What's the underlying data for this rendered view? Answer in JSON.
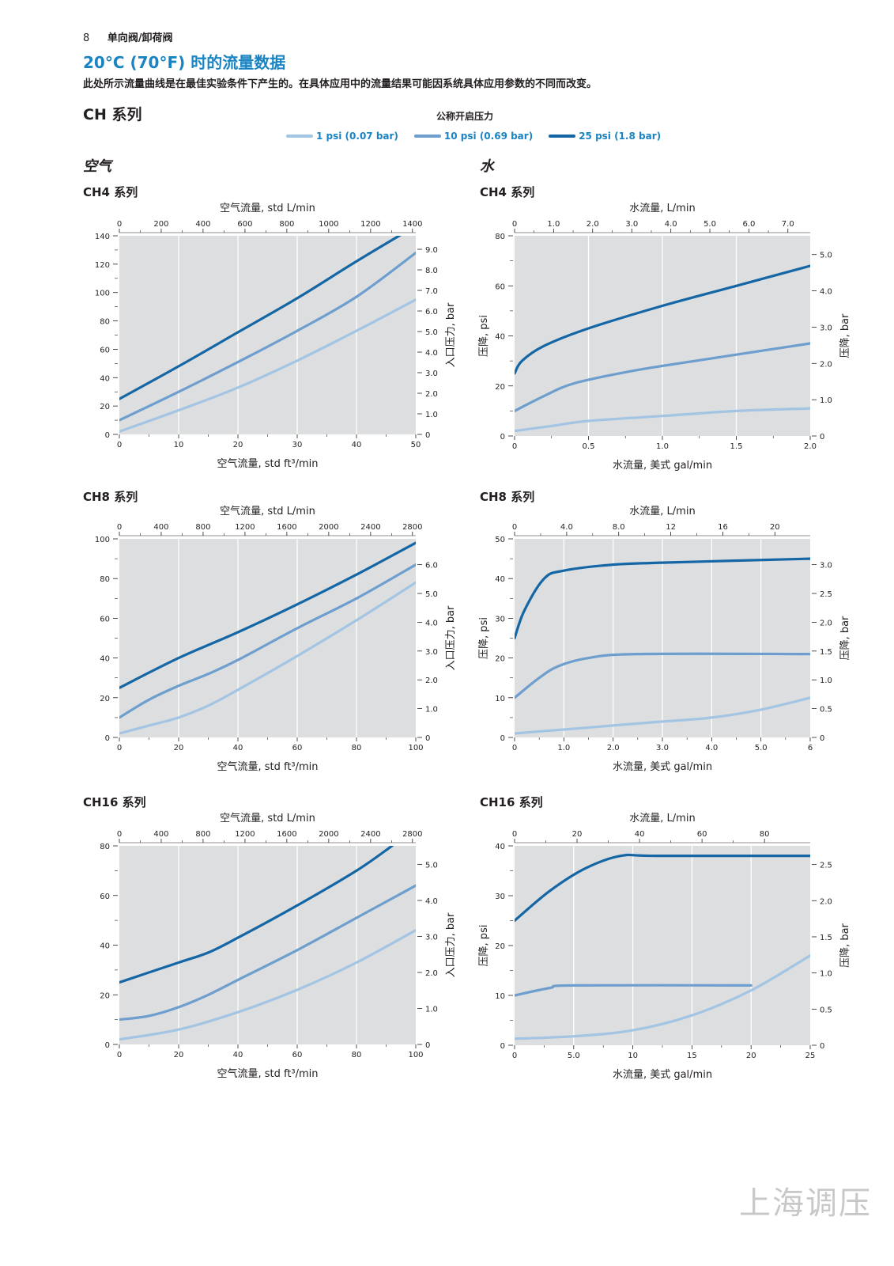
{
  "header": {
    "page_number": "8",
    "section": "单向阀/卸荷阀"
  },
  "title": "20°C (70°F) 时的流量数据",
  "intro": "此处所示流量曲线是在最佳实验条件下产生的。在具体应用中的流量结果可能因系统具体应用参数的不同而改变。",
  "series_title": "CH 系列",
  "legend": {
    "title": "公称开启压力",
    "items": [
      {
        "label": "1 psi (0.07 bar)",
        "color": "#a3c5e3"
      },
      {
        "label": "10 psi (0.69 bar)",
        "color": "#6d9ece"
      },
      {
        "label": "25 psi (1.8 bar)",
        "color": "#1466a4"
      }
    ]
  },
  "columns": {
    "air": "空气",
    "water": "水"
  },
  "watermark": "上海调压",
  "chart_data": [
    {
      "id": "air4",
      "type": "line",
      "title": "CH4 系列",
      "xlabel": "空气流量, std ft³/min",
      "x_top_label": "空气流量, std L/min",
      "ylabel": "入口压力, bar",
      "xlim": [
        0,
        50
      ],
      "ylim": [
        0,
        140
      ],
      "x_ticks": [
        "0",
        "10",
        "20",
        "30",
        "40",
        "50"
      ],
      "x_tick_values": [
        0,
        10,
        20,
        30,
        40,
        50
      ],
      "y_ticks": [
        "0",
        "20",
        "40",
        "60",
        "80",
        "100",
        "120",
        "140"
      ],
      "y_tick_values": [
        0,
        20,
        40,
        60,
        80,
        100,
        120,
        140
      ],
      "top_ticks": [
        "0",
        "200",
        "400",
        "600",
        "800",
        "1000",
        "1200",
        "1400"
      ],
      "top_tick_values": [
        0,
        7.06,
        14.12,
        21.19,
        28.25,
        35.31,
        42.38,
        49.44
      ],
      "right_ticks": [
        "0",
        "1.0",
        "2.0",
        "3.0",
        "4.0",
        "5.0",
        "6.0",
        "7.0",
        "8.0",
        "9.0"
      ],
      "right_tick_values": [
        0,
        14.5,
        29,
        43.5,
        58,
        72.5,
        87,
        101.5,
        116,
        130.5
      ],
      "series": [
        {
          "name": "1 psi (0.07 bar)",
          "x": [
            0,
            10,
            20,
            30,
            40,
            50
          ],
          "y": [
            2,
            17,
            33,
            52,
            73,
            95
          ]
        },
        {
          "name": "10 psi (0.69 bar)",
          "x": [
            0,
            10,
            20,
            30,
            40,
            50
          ],
          "y": [
            10,
            30,
            51,
            73,
            97,
            128
          ]
        },
        {
          "name": "25 psi (1.8 bar)",
          "x": [
            0,
            10,
            20,
            30,
            40,
            48
          ],
          "y": [
            25,
            48,
            72,
            96,
            122,
            142
          ]
        }
      ]
    },
    {
      "id": "water4",
      "type": "line",
      "title": "CH4 系列",
      "xlabel": "水流量, 美式 gal/min",
      "x_top_label": "水流量, L/min",
      "ylabel": "压降, psi",
      "ylabel_right": "压降, bar",
      "xlim": [
        0,
        2.0
      ],
      "ylim": [
        0,
        80
      ],
      "x_ticks": [
        "0",
        "0.5",
        "1.0",
        "1.5",
        "2.0"
      ],
      "x_tick_values": [
        0,
        0.5,
        1.0,
        1.5,
        2.0
      ],
      "y_ticks": [
        "0",
        "20",
        "40",
        "60",
        "80"
      ],
      "y_tick_values": [
        0,
        20,
        40,
        60,
        80
      ],
      "top_ticks": [
        "0",
        "1.0",
        "2.0",
        "3.0",
        "4.0",
        "5.0",
        "6.0",
        "7.0"
      ],
      "top_tick_values": [
        0,
        0.264,
        0.528,
        0.793,
        1.057,
        1.321,
        1.585,
        1.849
      ],
      "right_ticks": [
        "0",
        "1.0",
        "2.0",
        "3.0",
        "4.0",
        "5.0"
      ],
      "right_tick_values": [
        0,
        14.5,
        29,
        43.5,
        58,
        72.5
      ],
      "series": [
        {
          "name": "1 psi (0.07 bar)",
          "x": [
            0,
            0.25,
            0.5,
            1.0,
            1.5,
            2.0
          ],
          "y": [
            2,
            4,
            6,
            8,
            10,
            11
          ]
        },
        {
          "name": "10 psi (0.69 bar)",
          "x": [
            0,
            0.2,
            0.4,
            0.75,
            1.0,
            1.5,
            2.0
          ],
          "y": [
            10,
            16,
            21,
            25.5,
            28,
            32.5,
            37
          ]
        },
        {
          "name": "25 psi (1.8 bar)",
          "x": [
            0,
            0.05,
            0.2,
            0.5,
            1.0,
            1.5,
            2.0
          ],
          "y": [
            25,
            30,
            36,
            43,
            52,
            60,
            68
          ]
        }
      ]
    },
    {
      "id": "air8",
      "type": "line",
      "title": "CH8 系列",
      "xlabel": "空气流量, std ft³/min",
      "x_top_label": "空气流量, std L/min",
      "ylabel": "入口压力, bar",
      "xlim": [
        0,
        100
      ],
      "ylim": [
        0,
        100
      ],
      "x_ticks": [
        "0",
        "20",
        "40",
        "60",
        "80",
        "100"
      ],
      "x_tick_values": [
        0,
        20,
        40,
        60,
        80,
        100
      ],
      "y_ticks": [
        "0",
        "20",
        "40",
        "60",
        "80",
        "100"
      ],
      "y_tick_values": [
        0,
        20,
        40,
        60,
        80,
        100
      ],
      "top_ticks": [
        "0",
        "400",
        "800",
        "1200",
        "1600",
        "2000",
        "2400",
        "2800"
      ],
      "top_tick_values": [
        0,
        14.12,
        28.25,
        42.38,
        56.5,
        70.63,
        84.76,
        98.88
      ],
      "right_ticks": [
        "0",
        "1.0",
        "2.0",
        "3.0",
        "4.0",
        "5.0",
        "6.0"
      ],
      "right_tick_values": [
        0,
        14.5,
        29,
        43.5,
        58,
        72.5,
        87
      ],
      "series": [
        {
          "name": "1 psi (0.07 bar)",
          "x": [
            0,
            10,
            20,
            30,
            40,
            60,
            80,
            100
          ],
          "y": [
            2,
            6,
            10,
            16,
            24,
            41,
            59,
            78
          ]
        },
        {
          "name": "10 psi (0.69 bar)",
          "x": [
            0,
            10,
            20,
            30,
            40,
            60,
            80,
            100
          ],
          "y": [
            10,
            19,
            26,
            32,
            39,
            55,
            70,
            87
          ]
        },
        {
          "name": "25 psi (1.8 bar)",
          "x": [
            0,
            20,
            40,
            60,
            80,
            100
          ],
          "y": [
            25,
            40,
            53,
            67,
            82,
            98
          ]
        }
      ]
    },
    {
      "id": "water8",
      "type": "line",
      "title": "CH8 系列",
      "xlabel": "水流量, 美式 gal/min",
      "x_top_label": "水流量, L/min",
      "ylabel": "压降, psi",
      "ylabel_right": "压降, bar",
      "xlim": [
        0,
        6
      ],
      "ylim": [
        0,
        50
      ],
      "x_ticks": [
        "0",
        "1.0",
        "2.0",
        "3.0",
        "4.0",
        "5.0",
        "6"
      ],
      "x_tick_values": [
        0,
        1,
        2,
        3,
        4,
        5,
        6
      ],
      "y_ticks": [
        "0",
        "10",
        "20",
        "30",
        "40",
        "50"
      ],
      "y_tick_values": [
        0,
        10,
        20,
        30,
        40,
        50
      ],
      "top_ticks": [
        "0",
        "4.0",
        "8.0",
        "12",
        "16",
        "20"
      ],
      "top_tick_values": [
        0,
        1.057,
        2.113,
        3.17,
        4.227,
        5.283
      ],
      "right_ticks": [
        "0",
        "0.5",
        "1.0",
        "1.5",
        "2.0",
        "2.5",
        "3.0"
      ],
      "right_tick_values": [
        0,
        7.25,
        14.5,
        21.75,
        29,
        36.25,
        43.5
      ],
      "series": [
        {
          "name": "1 psi (0.07 bar)",
          "x": [
            0,
            1,
            2,
            3,
            4,
            5,
            6
          ],
          "y": [
            1,
            2,
            3,
            4,
            5,
            7,
            10
          ]
        },
        {
          "name": "10 psi (0.69 bar)",
          "x": [
            0,
            0.5,
            0.9,
            1.5,
            2.5,
            6
          ],
          "y": [
            10,
            15,
            18,
            20,
            21,
            21
          ]
        },
        {
          "name": "25 psi (1.8 bar)",
          "x": [
            0,
            0.2,
            0.6,
            1.0,
            2.0,
            3.0,
            6.0
          ],
          "y": [
            25,
            32,
            40,
            42,
            43.5,
            44,
            45
          ]
        }
      ]
    },
    {
      "id": "air16",
      "type": "line",
      "title": "CH16 系列",
      "xlabel": "空气流量, std ft³/min",
      "x_top_label": "空气流量, std L/min",
      "ylabel": "入口压力, bar",
      "xlim": [
        0,
        100
      ],
      "ylim": [
        0,
        80
      ],
      "x_ticks": [
        "0",
        "20",
        "40",
        "60",
        "80",
        "100"
      ],
      "x_tick_values": [
        0,
        20,
        40,
        60,
        80,
        100
      ],
      "y_ticks": [
        "0",
        "20",
        "40",
        "60",
        "80"
      ],
      "y_tick_values": [
        0,
        20,
        40,
        60,
        80
      ],
      "top_ticks": [
        "0",
        "400",
        "800",
        "1200",
        "1600",
        "2000",
        "2400",
        "2800"
      ],
      "top_tick_values": [
        0,
        14.12,
        28.25,
        42.38,
        56.5,
        70.63,
        84.76,
        98.88
      ],
      "right_ticks": [
        "0",
        "1.0",
        "2.0",
        "3.0",
        "4.0",
        "5.0"
      ],
      "right_tick_values": [
        0,
        14.5,
        29,
        43.5,
        58,
        72.5
      ],
      "series": [
        {
          "name": "1 psi (0.07 bar)",
          "x": [
            0,
            20,
            40,
            60,
            80,
            100
          ],
          "y": [
            2,
            6,
            13,
            22,
            33,
            46
          ]
        },
        {
          "name": "10 psi (0.69 bar)",
          "x": [
            0,
            10,
            20,
            30,
            40,
            60,
            80,
            100
          ],
          "y": [
            10,
            11.5,
            15,
            20,
            26,
            38,
            51,
            64
          ]
        },
        {
          "name": "25 psi (1.8 bar)",
          "x": [
            0,
            20,
            30,
            40,
            60,
            80,
            92
          ],
          "y": [
            25,
            33,
            37,
            43,
            56,
            70,
            80
          ]
        }
      ]
    },
    {
      "id": "water16",
      "type": "line",
      "title": "CH16 系列",
      "xlabel": "水流量, 美式 gal/min",
      "x_top_label": "水流量, L/min",
      "ylabel": "压降, psi",
      "ylabel_right": "压降, bar",
      "xlim": [
        0,
        25
      ],
      "ylim": [
        0,
        40
      ],
      "x_ticks": [
        "0",
        "5.0",
        "10",
        "15",
        "20",
        "25"
      ],
      "x_tick_values": [
        0,
        5,
        10,
        15,
        20,
        25
      ],
      "y_ticks": [
        "0",
        "10",
        "20",
        "30",
        "40"
      ],
      "y_tick_values": [
        0,
        10,
        20,
        30,
        40
      ],
      "top_ticks": [
        "0",
        "20",
        "40",
        "60",
        "80"
      ],
      "top_tick_values": [
        0,
        5.283,
        10.567,
        15.85,
        21.134
      ],
      "right_ticks": [
        "0",
        "0.5",
        "1.0",
        "1.5",
        "2.0",
        "2.5"
      ],
      "right_tick_values": [
        0,
        7.25,
        14.5,
        21.75,
        29,
        36.25
      ],
      "series": [
        {
          "name": "1 psi (0.07 bar)",
          "x": [
            0,
            5,
            10,
            15,
            20,
            25
          ],
          "y": [
            1.3,
            1.8,
            3,
            6,
            11,
            18
          ]
        },
        {
          "name": "10 psi (0.69 bar)",
          "x": [
            0,
            3,
            5,
            20
          ],
          "y": [
            10,
            11.5,
            12,
            12
          ]
        },
        {
          "name": "25 psi (1.8 bar)",
          "x": [
            0,
            3,
            6,
            9,
            12,
            25
          ],
          "y": [
            25,
            31,
            35.5,
            38,
            38,
            38
          ]
        }
      ]
    }
  ]
}
